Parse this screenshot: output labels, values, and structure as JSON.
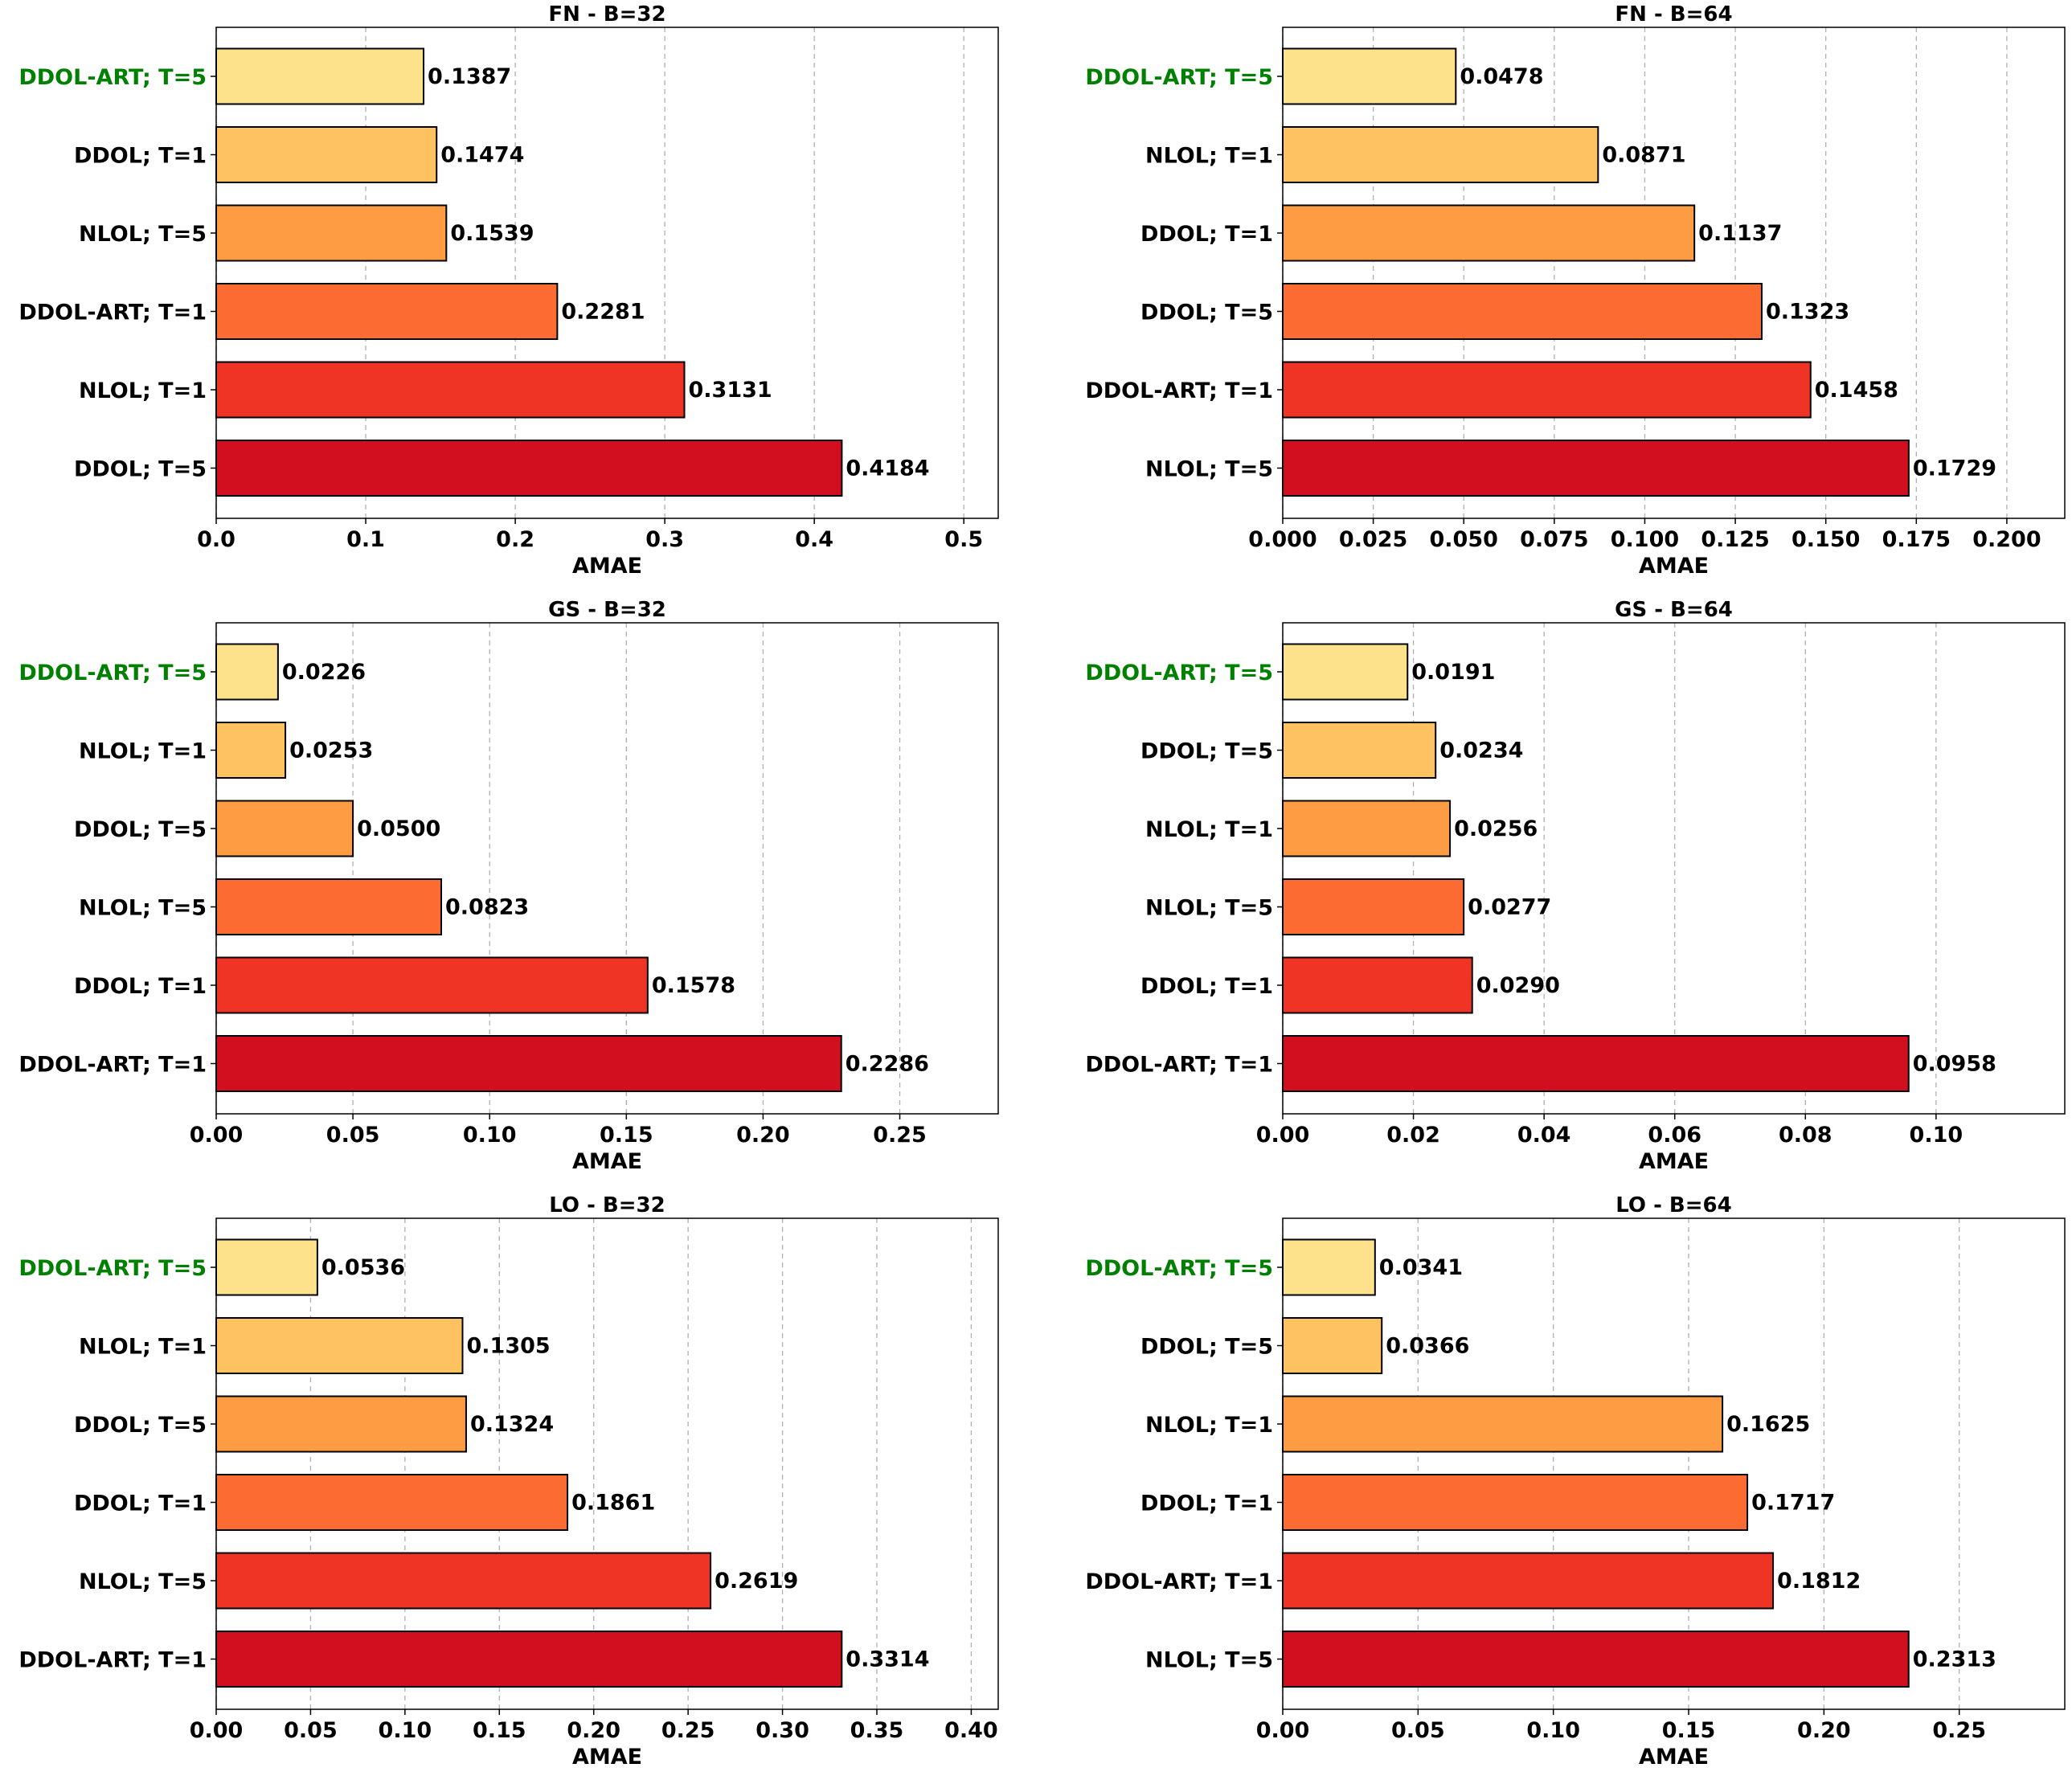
{
  "chart_data": [
    {
      "type": "bar",
      "orientation": "horizontal",
      "title": "FN - B=32",
      "xlabel": "AMAE",
      "categories": [
        "DDOL-ART; T=5",
        "DDOL; T=1",
        "NLOL; T=5",
        "DDOL-ART; T=1",
        "NLOL; T=1",
        "DDOL; T=5"
      ],
      "values": [
        0.1387,
        0.1474,
        0.1539,
        0.2281,
        0.3131,
        0.4184
      ],
      "value_labels": [
        "0.1387",
        "0.1474",
        "0.1539",
        "0.2281",
        "0.3131",
        "0.4184"
      ],
      "highlight_index": 0,
      "xlim": [
        0,
        0.523
      ],
      "ticks": [
        0,
        0.1,
        0.2,
        0.3,
        0.4,
        0.5
      ],
      "tick_labels": [
        "0.0",
        "0.1",
        "0.2",
        "0.3",
        "0.4",
        "0.5"
      ],
      "grid": "x, dashed"
    },
    {
      "type": "bar",
      "orientation": "horizontal",
      "title": "FN - B=64",
      "xlabel": "AMAE",
      "categories": [
        "DDOL-ART; T=5",
        "NLOL; T=1",
        "DDOL; T=1",
        "DDOL; T=5",
        "DDOL-ART; T=1",
        "NLOL; T=5"
      ],
      "values": [
        0.0478,
        0.0871,
        0.1137,
        0.1323,
        0.1458,
        0.1729
      ],
      "value_labels": [
        "0.0478",
        "0.0871",
        "0.1137",
        "0.1323",
        "0.1458",
        "0.1729"
      ],
      "highlight_index": 0,
      "xlim": [
        0,
        0.216
      ],
      "ticks": [
        0,
        0.025,
        0.05,
        0.075,
        0.1,
        0.125,
        0.15,
        0.175,
        0.2
      ],
      "tick_labels": [
        "0.000",
        "0.025",
        "0.050",
        "0.075",
        "0.100",
        "0.125",
        "0.150",
        "0.175",
        "0.200"
      ],
      "grid": "x, dashed"
    },
    {
      "type": "bar",
      "orientation": "horizontal",
      "title": "GS - B=32",
      "xlabel": "AMAE",
      "categories": [
        "DDOL-ART; T=5",
        "NLOL; T=1",
        "DDOL; T=5",
        "NLOL; T=5",
        "DDOL; T=1",
        "DDOL-ART; T=1"
      ],
      "values": [
        0.0226,
        0.0253,
        0.05,
        0.0823,
        0.1578,
        0.2286
      ],
      "value_labels": [
        "0.0226",
        "0.0253",
        "0.0500",
        "0.0823",
        "0.1578",
        "0.2286"
      ],
      "highlight_index": 0,
      "xlim": [
        0,
        0.286
      ],
      "ticks": [
        0,
        0.05,
        0.1,
        0.15,
        0.2,
        0.25
      ],
      "tick_labels": [
        "0.00",
        "0.05",
        "0.10",
        "0.15",
        "0.20",
        "0.25"
      ],
      "grid": "x, dashed"
    },
    {
      "type": "bar",
      "orientation": "horizontal",
      "title": "GS - B=64",
      "xlabel": "AMAE",
      "categories": [
        "DDOL-ART; T=5",
        "DDOL; T=5",
        "NLOL; T=1",
        "NLOL; T=5",
        "DDOL; T=1",
        "DDOL-ART; T=1"
      ],
      "values": [
        0.0191,
        0.0234,
        0.0256,
        0.0277,
        0.029,
        0.0958
      ],
      "value_labels": [
        "0.0191",
        "0.0234",
        "0.0256",
        "0.0277",
        "0.0290",
        "0.0958"
      ],
      "highlight_index": 0,
      "xlim": [
        0,
        0.1197
      ],
      "ticks": [
        0,
        0.02,
        0.04,
        0.06,
        0.08,
        0.1
      ],
      "tick_labels": [
        "0.00",
        "0.02",
        "0.04",
        "0.06",
        "0.08",
        "0.10"
      ],
      "grid": "x, dashed"
    },
    {
      "type": "bar",
      "orientation": "horizontal",
      "title": "LO - B=32",
      "xlabel": "AMAE",
      "categories": [
        "DDOL-ART; T=5",
        "NLOL; T=1",
        "DDOL; T=5",
        "DDOL; T=1",
        "NLOL; T=5",
        "DDOL-ART; T=1"
      ],
      "values": [
        0.0536,
        0.1305,
        0.1324,
        0.1861,
        0.2619,
        0.3314
      ],
      "value_labels": [
        "0.0536",
        "0.1305",
        "0.1324",
        "0.1861",
        "0.2619",
        "0.3314"
      ],
      "highlight_index": 0,
      "xlim": [
        0,
        0.4143
      ],
      "ticks": [
        0,
        0.05,
        0.1,
        0.15,
        0.2,
        0.25,
        0.3,
        0.35,
        0.4
      ],
      "tick_labels": [
        "0.00",
        "0.05",
        "0.10",
        "0.15",
        "0.20",
        "0.25",
        "0.30",
        "0.35",
        "0.40"
      ],
      "grid": "x, dashed"
    },
    {
      "type": "bar",
      "orientation": "horizontal",
      "title": "LO - B=64",
      "xlabel": "AMAE",
      "categories": [
        "DDOL-ART; T=5",
        "DDOL; T=5",
        "NLOL; T=1",
        "DDOL; T=1",
        "DDOL-ART; T=1",
        "NLOL; T=5"
      ],
      "values": [
        0.0341,
        0.0366,
        0.1625,
        0.1717,
        0.1812,
        0.2313
      ],
      "value_labels": [
        "0.0341",
        "0.0366",
        "0.1625",
        "0.1717",
        "0.1812",
        "0.2313"
      ],
      "highlight_index": 0,
      "xlim": [
        0,
        0.289
      ],
      "ticks": [
        0,
        0.05,
        0.1,
        0.15,
        0.2,
        0.25
      ],
      "tick_labels": [
        "0.00",
        "0.05",
        "0.10",
        "0.15",
        "0.20",
        "0.25"
      ],
      "grid": "x, dashed"
    }
  ],
  "colors": {
    "bar_ramp": [
      "#fee28b",
      "#fec260",
      "#fd9c42",
      "#fc6b32",
      "#ef3426",
      "#d20f1f"
    ],
    "highlight_label": "#008000",
    "grid": "#b0b0b0"
  }
}
